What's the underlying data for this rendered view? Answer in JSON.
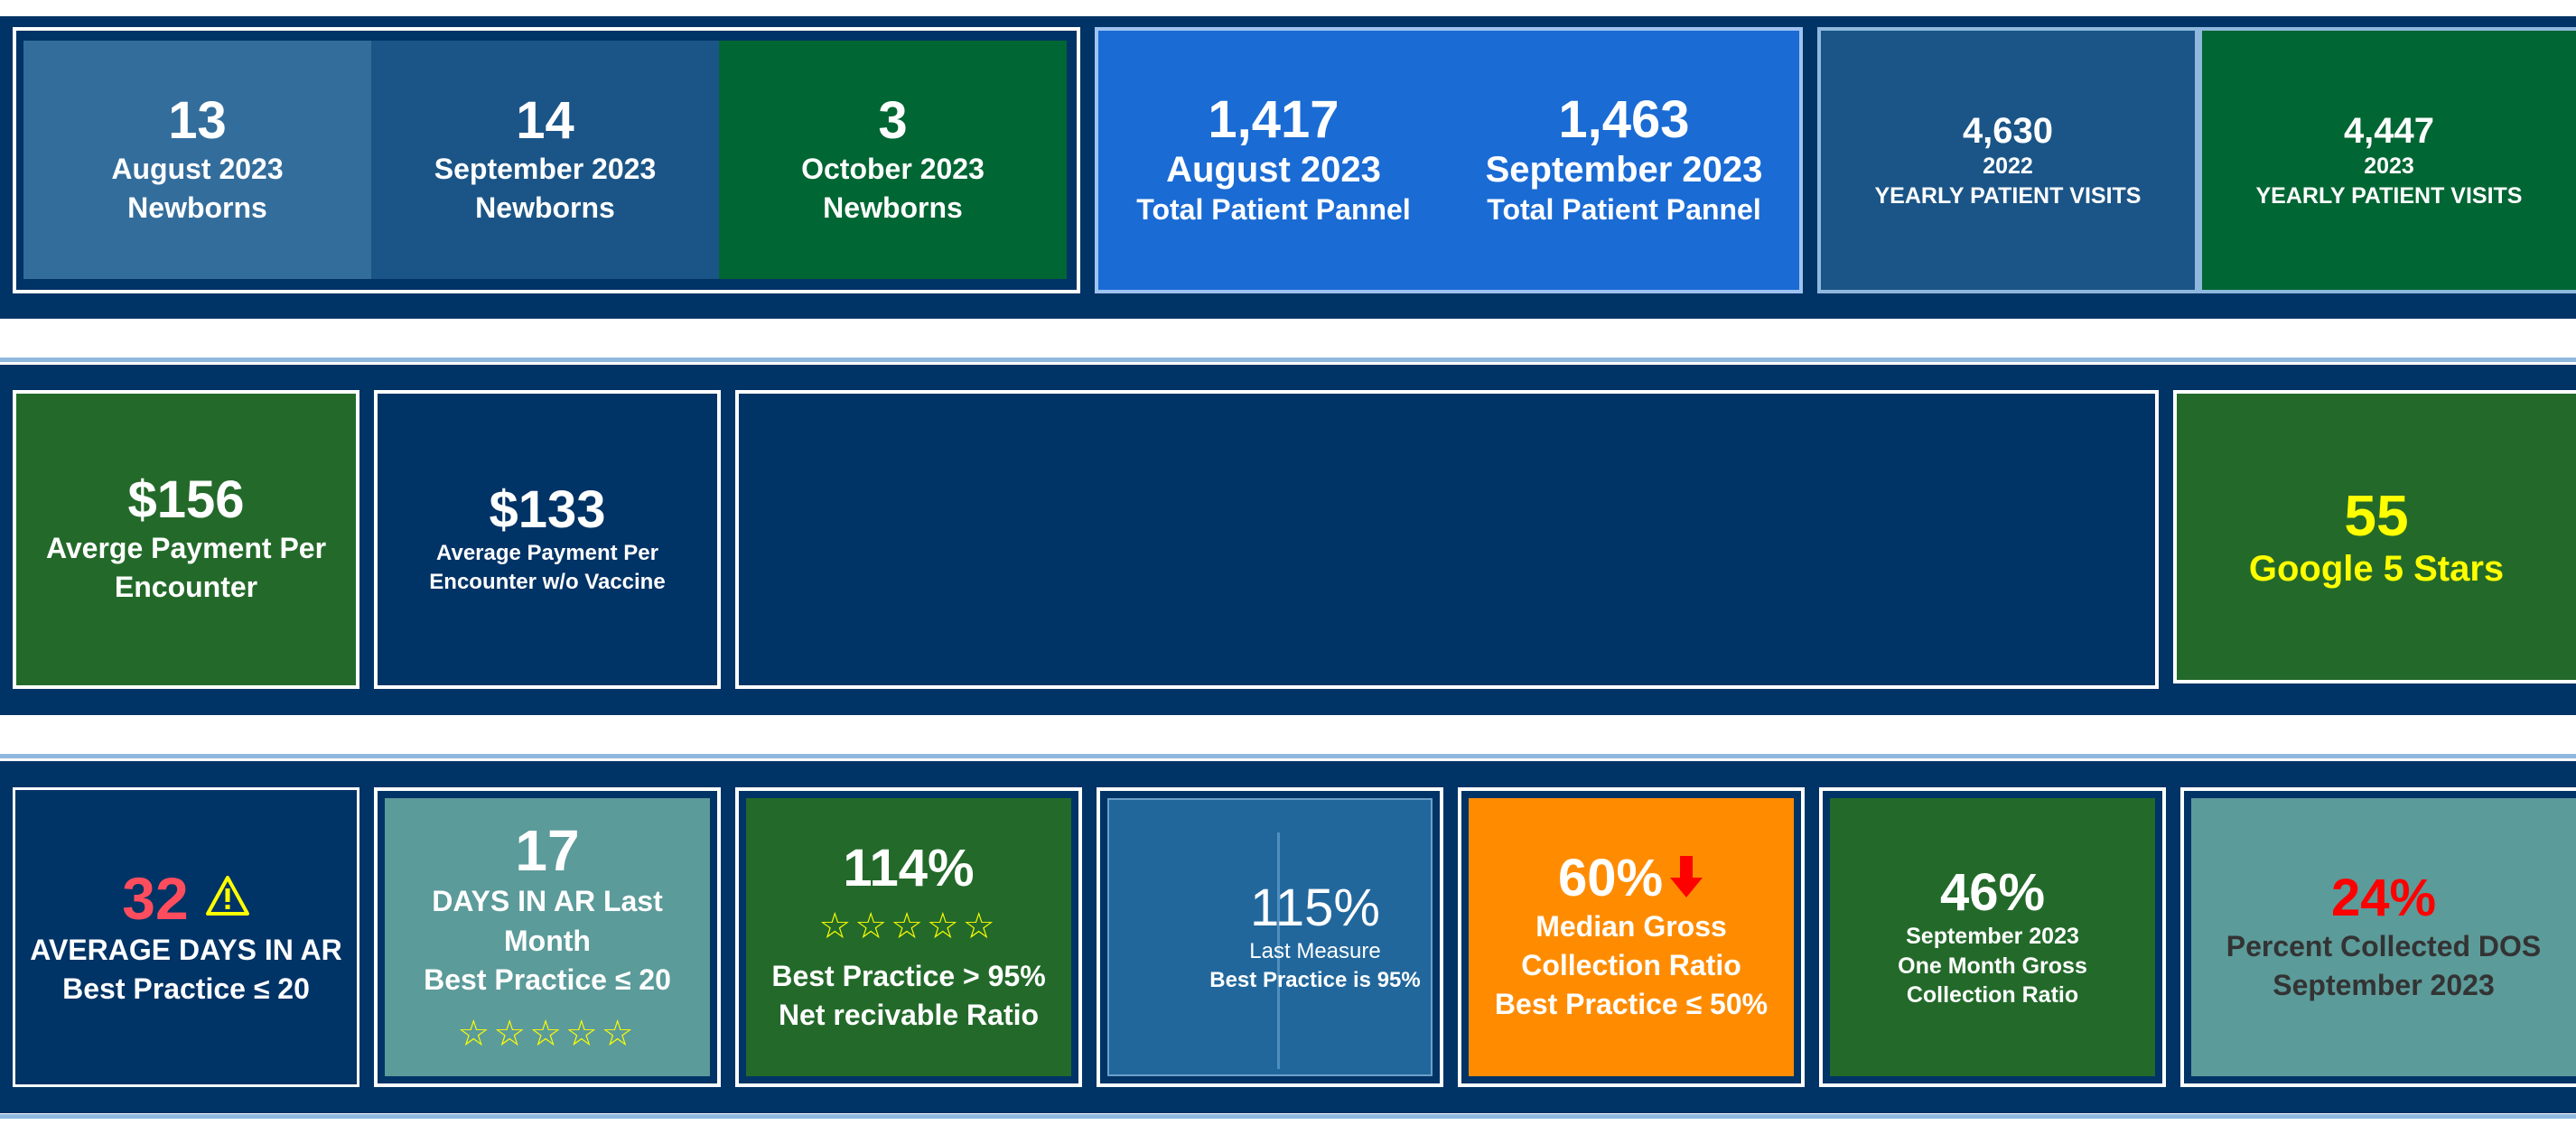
{
  "row1": {
    "newborns": [
      {
        "value": "13",
        "month": "August 2023",
        "label": "Newborns"
      },
      {
        "value": "14",
        "month": "September 2023",
        "label": "Newborns"
      },
      {
        "value": "3",
        "month": "October 2023",
        "label": "Newborns"
      }
    ],
    "panel": [
      {
        "value": "1,417",
        "month": "August 2023",
        "label": "Total Patient Pannel"
      },
      {
        "value": "1,463",
        "month": "September 2023",
        "label": "Total Patient Pannel"
      }
    ],
    "visits": [
      {
        "value": "4,630",
        "year": "2022",
        "label": "YEARLY PATIENT VISITS"
      },
      {
        "value": "4,447",
        "year": "2023",
        "label": "YEARLY PATIENT VISITS"
      }
    ]
  },
  "row2": {
    "avg_payment": {
      "value": "$156",
      "label": "Averge Payment Per Encounter"
    },
    "avg_payment_novax": {
      "value": "$133",
      "label": "Average Payment Per Encounter w/o Vaccine"
    },
    "google": {
      "value": "55",
      "label": "Google 5 Stars"
    }
  },
  "row3": {
    "avg_days_ar": {
      "value": "32",
      "warning_icon": "warning-icon",
      "label": "AVERAGE DAYS IN AR",
      "best": "Best Practice  ≤ 20"
    },
    "days_ar_last": {
      "value": "17",
      "label": "DAYS IN AR Last Month",
      "best": "Best Practice ≤ 20",
      "stars": "☆☆☆☆☆"
    },
    "net_recv": {
      "value": "114%",
      "stars": "☆☆☆☆☆",
      "best": "Best Practice > 95%",
      "label": "Net recivable Ratio"
    },
    "last_measure": {
      "value": "115%",
      "label": "Last Measure",
      "best": "Best Practice is 95%"
    },
    "median_gross": {
      "value": "60%",
      "arrow_icon": "down-arrow-icon",
      "label": "Median Gross Collection Ratio",
      "best": "Best Practice ≤ 50%"
    },
    "one_month": {
      "value": "46%",
      "month": "September 2023",
      "label": "One Month Gross Collection Ratio"
    },
    "dos": {
      "value": "24%",
      "label": "Percent Collected DOS September 2023"
    }
  },
  "colors": {
    "navy": "#003366",
    "steel_blue": "#1b5587",
    "light_steel": "#336d9c",
    "dark_green": "#006633",
    "green": "#236a2a",
    "bright_blue": "#1a6bd4",
    "teal": "#5b9b9a",
    "orange": "#ff8c00",
    "mid_blue": "#21679c",
    "yellow": "#ffff00",
    "red": "#ff0000",
    "coral": "#ff4d5e"
  }
}
